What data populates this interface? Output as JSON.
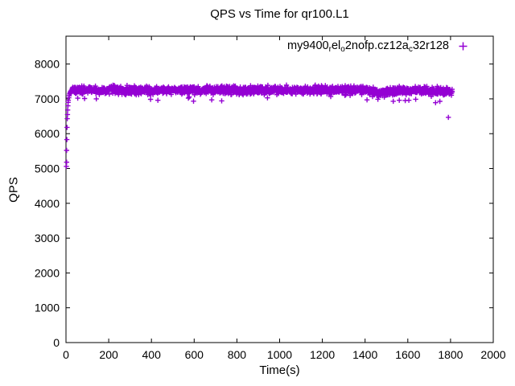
{
  "page": {
    "background": "#ffffff",
    "window_size": "640x480"
  },
  "chart_data": {
    "type": "scatter",
    "title": "QPS vs Time for qr100.L1",
    "xlabel": "Time(s)",
    "ylabel": "QPS",
    "xlim": [
      0,
      2000
    ],
    "ylim": [
      0,
      8800
    ],
    "xticks": [
      0,
      200,
      400,
      600,
      800,
      1000,
      1200,
      1400,
      1600,
      1800,
      2000
    ],
    "yticks": [
      0,
      1000,
      2000,
      3000,
      4000,
      5000,
      6000,
      7000,
      8000
    ],
    "grid": false,
    "axis_color": "#000000",
    "tick_length": 5,
    "legend": {
      "position": "top-right-inside",
      "entries": [
        {
          "label": "my9400_rel_o2nofp.cz12a_c32r128",
          "label_parts": [
            {
              "text": "my9400"
            },
            {
              "text": "r",
              "sub": true
            },
            {
              "text": "el"
            },
            {
              "text": "o",
              "sub": true
            },
            {
              "text": "2nofp.cz12a"
            },
            {
              "text": "c",
              "sub": true
            },
            {
              "text": "32r128"
            }
          ],
          "marker": "plus",
          "color": "#9400D3"
        }
      ]
    },
    "series": [
      {
        "name": "my9400_rel_o2nofp.cz12a_c32r128",
        "marker": "plus",
        "color": "#9400D3",
        "summary": "QPS ramps from ~5000 at t=2s to ~7200 by t=20s, then holds a dense steady band of ~7100-7400 QPS through t=1808s, with slight dips near t=1420-1540 and after t=1690, and stragglers down to ~6470 near the end.",
        "ramp_points": [
          [
            2,
            5060
          ],
          [
            3,
            5180
          ],
          [
            3,
            5520
          ],
          [
            4,
            5830
          ],
          [
            5,
            6180
          ],
          [
            6,
            6430
          ],
          [
            7,
            6550
          ],
          [
            8,
            6680
          ],
          [
            9,
            6800
          ],
          [
            10,
            6900
          ],
          [
            11,
            6960
          ],
          [
            13,
            7030
          ],
          [
            15,
            7090
          ],
          [
            17,
            7140
          ],
          [
            19,
            7170
          ],
          [
            21,
            7200
          ]
        ],
        "outlier_points": [
          [
            55,
            7020
          ],
          [
            87,
            7010
          ],
          [
            430,
            6960
          ],
          [
            1460,
            6990
          ],
          [
            1560,
            6960
          ],
          [
            1637,
            6990
          ],
          [
            1730,
            6890
          ],
          [
            1750,
            6930
          ],
          [
            1790,
            6470
          ]
        ],
        "steady_band": {
          "t_start": 22,
          "t_end": 1808,
          "step": 1,
          "mean": 7250,
          "sd": 55,
          "low_tail_chance": 0.006,
          "low_tail_range": [
            6930,
            7070
          ],
          "dips": [
            {
              "from": 1420,
              "to": 1540,
              "delta": -60
            },
            {
              "from": 1690,
              "to": 1810,
              "delta": -40
            }
          ],
          "seed": 9400
        }
      }
    ]
  }
}
